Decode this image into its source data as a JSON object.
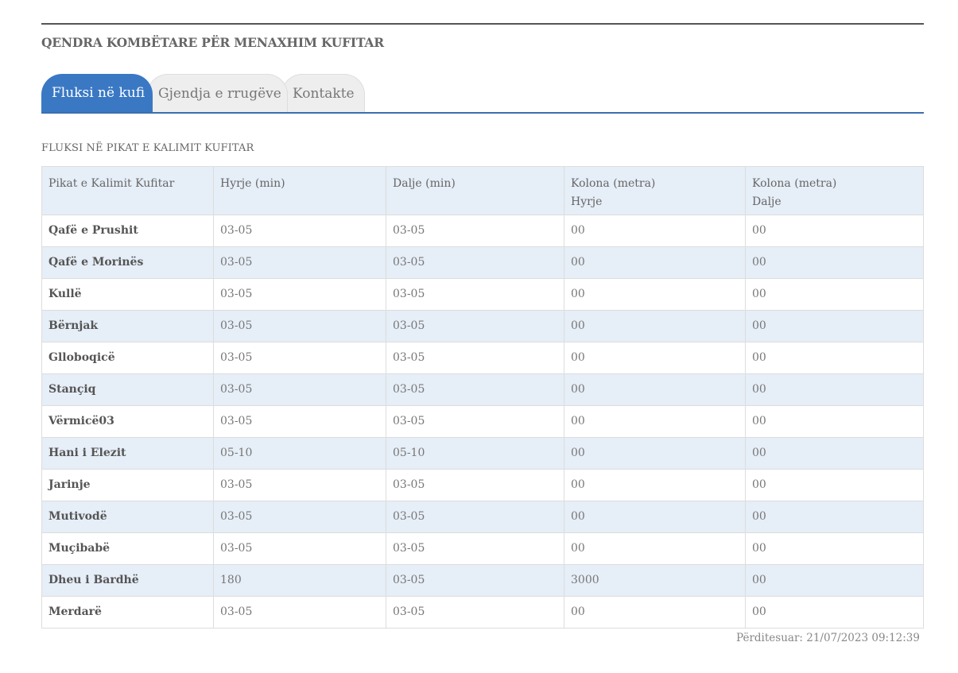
{
  "org_title": "QENDRA KOMBËTARE PËR MENAXHIM KUFITAR",
  "tabs": [
    {
      "label": "Fluksi në kufi"
    },
    {
      "label": "Gjendja e rrugëve"
    },
    {
      "label": "Kontakte"
    }
  ],
  "section_title": "FLUKSI NË PIKAT E KALIMIT KUFITAR",
  "table": {
    "headers": [
      {
        "line1": "Pikat e Kalimit Kufitar",
        "line2": ""
      },
      {
        "line1": "Hyrje (min)",
        "line2": ""
      },
      {
        "line1": "Dalje (min)",
        "line2": ""
      },
      {
        "line1": "Kolona (metra)",
        "line2": "Hyrje"
      },
      {
        "line1": "Kolona (metra)",
        "line2": "Dalje"
      }
    ],
    "rows": [
      [
        "Qafë e Prushit",
        "03-05",
        "03-05",
        "00",
        "00"
      ],
      [
        "Qafë e Morinës",
        "03-05",
        "03-05",
        "00",
        "00"
      ],
      [
        "Kullë",
        "03-05",
        "03-05",
        "00",
        "00"
      ],
      [
        "Bërnjak",
        "03-05",
        "03-05",
        "00",
        "00"
      ],
      [
        "Glloboqicë",
        "03-05",
        "03-05",
        "00",
        "00"
      ],
      [
        "Stançiq",
        "03-05",
        "03-05",
        "00",
        "00"
      ],
      [
        "Vërmicë03",
        "03-05",
        "03-05",
        "00",
        "00"
      ],
      [
        "Hani i Elezit",
        "05-10",
        "05-10",
        "00",
        "00"
      ],
      [
        "Jarinje",
        "03-05",
        "03-05",
        "00",
        "00"
      ],
      [
        "Mutivodë",
        "03-05",
        "03-05",
        "00",
        "00"
      ],
      [
        "Muçibabë",
        "03-05",
        "03-05",
        "00",
        "00"
      ],
      [
        "Dheu i Bardhë",
        "180",
        "03-05",
        "3000",
        "00"
      ],
      [
        "Merdarë",
        "03-05",
        "03-05",
        "00",
        "00"
      ]
    ]
  },
  "updated": "Përditesuar: 21/07/2023 09:12:39",
  "colors": {
    "accent": "#3a78c4",
    "row_stripe": "#e6eef7"
  }
}
